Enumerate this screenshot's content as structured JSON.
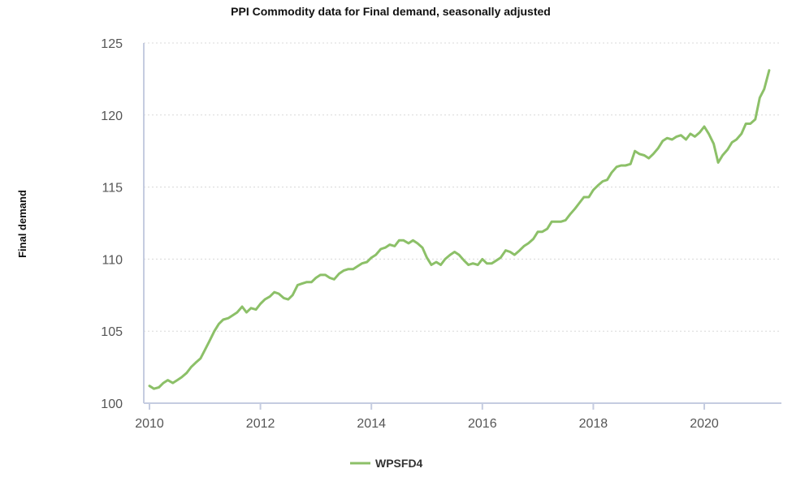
{
  "colors": {
    "series": "#8cc068",
    "axis": "#c5cce0",
    "grid": "#d8d8d8"
  },
  "chart_data": {
    "type": "line",
    "title": "PPI Commodity data for Final demand, seasonally adjusted",
    "ylabel": "Final demand",
    "xlabel": "",
    "ylim": [
      100,
      125
    ],
    "xlim": [
      2010.0,
      2021.4
    ],
    "yticks": [
      100,
      105,
      110,
      115,
      120,
      125
    ],
    "xticks": [
      2010,
      2012,
      2014,
      2016,
      2018,
      2020
    ],
    "grid": true,
    "legend_position": "bottom-center",
    "series": [
      {
        "name": "WPSFD4",
        "x": [
          2010.0,
          2010.08,
          2010.17,
          2010.25,
          2010.33,
          2010.42,
          2010.5,
          2010.58,
          2010.67,
          2010.75,
          2010.83,
          2010.92,
          2011.0,
          2011.08,
          2011.17,
          2011.25,
          2011.33,
          2011.42,
          2011.5,
          2011.58,
          2011.67,
          2011.75,
          2011.83,
          2011.92,
          2012.0,
          2012.08,
          2012.17,
          2012.25,
          2012.33,
          2012.42,
          2012.5,
          2012.58,
          2012.67,
          2012.75,
          2012.83,
          2012.92,
          2013.0,
          2013.08,
          2013.17,
          2013.25,
          2013.33,
          2013.42,
          2013.5,
          2013.58,
          2013.67,
          2013.75,
          2013.83,
          2013.92,
          2014.0,
          2014.08,
          2014.17,
          2014.25,
          2014.33,
          2014.42,
          2014.5,
          2014.58,
          2014.67,
          2014.75,
          2014.83,
          2014.92,
          2015.0,
          2015.08,
          2015.17,
          2015.25,
          2015.33,
          2015.42,
          2015.5,
          2015.58,
          2015.67,
          2015.75,
          2015.83,
          2015.92,
          2016.0,
          2016.08,
          2016.17,
          2016.25,
          2016.33,
          2016.42,
          2016.5,
          2016.58,
          2016.67,
          2016.75,
          2016.83,
          2016.92,
          2017.0,
          2017.08,
          2017.17,
          2017.25,
          2017.33,
          2017.42,
          2017.5,
          2017.58,
          2017.67,
          2017.75,
          2017.83,
          2017.92,
          2018.0,
          2018.08,
          2018.17,
          2018.25,
          2018.33,
          2018.42,
          2018.5,
          2018.58,
          2018.67,
          2018.75,
          2018.83,
          2018.92,
          2019.0,
          2019.08,
          2019.17,
          2019.25,
          2019.33,
          2019.42,
          2019.5,
          2019.58,
          2019.67,
          2019.75,
          2019.83,
          2019.92,
          2020.0,
          2020.08,
          2020.17,
          2020.25,
          2020.33,
          2020.42,
          2020.5,
          2020.58,
          2020.67,
          2020.75,
          2020.83,
          2020.92,
          2021.0,
          2021.08,
          2021.17
        ],
        "values": [
          101.2,
          101.0,
          101.1,
          101.4,
          101.6,
          101.4,
          101.6,
          101.8,
          102.1,
          102.5,
          102.8,
          103.1,
          103.7,
          104.3,
          105.0,
          105.5,
          105.8,
          105.9,
          106.1,
          106.3,
          106.7,
          106.3,
          106.6,
          106.5,
          106.9,
          107.2,
          107.4,
          107.7,
          107.6,
          107.3,
          107.2,
          107.5,
          108.2,
          108.3,
          108.4,
          108.4,
          108.7,
          108.9,
          108.9,
          108.7,
          108.6,
          109.0,
          109.2,
          109.3,
          109.3,
          109.5,
          109.7,
          109.8,
          110.1,
          110.3,
          110.7,
          110.8,
          111.0,
          110.9,
          111.3,
          111.3,
          111.1,
          111.3,
          111.1,
          110.8,
          110.1,
          109.6,
          109.8,
          109.6,
          110.0,
          110.3,
          110.5,
          110.3,
          109.9,
          109.6,
          109.7,
          109.6,
          110.0,
          109.7,
          109.7,
          109.9,
          110.1,
          110.6,
          110.5,
          110.3,
          110.6,
          110.9,
          111.1,
          111.4,
          111.9,
          111.9,
          112.1,
          112.6,
          112.6,
          112.6,
          112.7,
          113.1,
          113.5,
          113.9,
          114.3,
          114.3,
          114.8,
          115.1,
          115.4,
          115.5,
          116.0,
          116.4,
          116.5,
          116.5,
          116.6,
          117.5,
          117.3,
          117.2,
          117.0,
          117.3,
          117.7,
          118.2,
          118.4,
          118.3,
          118.5,
          118.6,
          118.3,
          118.7,
          118.5,
          118.8,
          119.2,
          118.7,
          118.0,
          116.7,
          117.2,
          117.6,
          118.1,
          118.3,
          118.7,
          119.4,
          119.4,
          119.7,
          121.2,
          121.8,
          123.1
        ]
      }
    ]
  }
}
